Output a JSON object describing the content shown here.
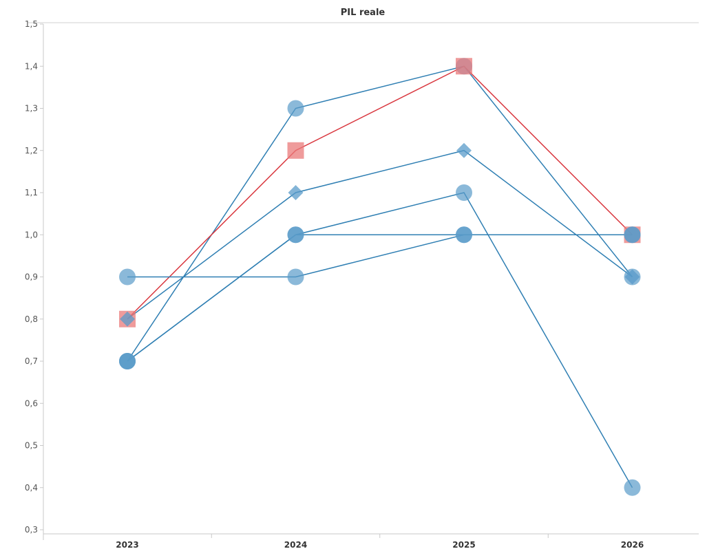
{
  "chart_data": {
    "type": "line",
    "title": "PIL reale",
    "xlabel": "",
    "ylabel": "",
    "categories": [
      "2023",
      "2024",
      "2025",
      "2026"
    ],
    "ylim": [
      0.3,
      1.5
    ],
    "yticks": [
      "0,3",
      "0,4",
      "0,5",
      "0,6",
      "0,7",
      "0,8",
      "0,9",
      "1,0",
      "1,1",
      "1,2",
      "1,3",
      "1,4",
      "1,5"
    ],
    "grid": false,
    "legend": "none",
    "colors": {
      "blue_line": "#2f7fb3",
      "blue_marker": "#5a9bc9",
      "red_line": "#d9363e",
      "red_marker": "#ea7a7a"
    },
    "series": [
      {
        "values": [
          0.7,
          1.3,
          1.4,
          0.9
        ],
        "marker": "circle",
        "color": "blue"
      },
      {
        "values": [
          0.8,
          1.2,
          1.4,
          1.0
        ],
        "marker": "square",
        "color": "red"
      },
      {
        "values": [
          0.8,
          1.1,
          1.2,
          0.9
        ],
        "marker": "diamond",
        "color": "blue"
      },
      {
        "values": [
          0.7,
          1.0,
          1.1,
          0.4
        ],
        "marker": "circle",
        "color": "blue"
      },
      {
        "values": [
          0.7,
          1.0,
          1.0,
          1.0
        ],
        "marker": "circle",
        "color": "blue"
      },
      {
        "values": [
          0.9,
          0.9,
          1.0,
          1.0
        ],
        "marker": "circle",
        "color": "blue"
      }
    ]
  }
}
